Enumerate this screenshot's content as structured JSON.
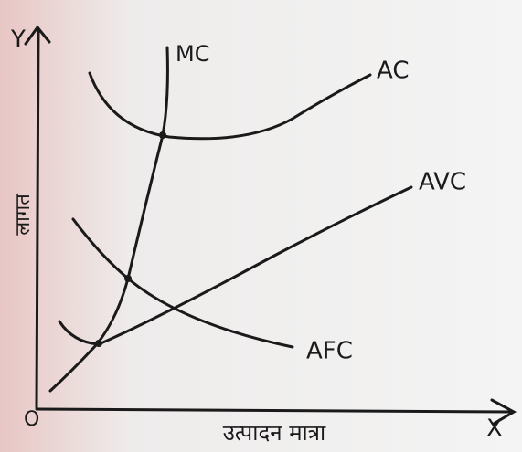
{
  "axes": {
    "y_label": "Y",
    "x_label": "X",
    "origin": "O",
    "y_title": "लागत",
    "x_title": "उत्पादन मात्रा"
  },
  "curves": [
    {
      "label": "MC"
    },
    {
      "label": "AC"
    },
    {
      "label": "AVC"
    },
    {
      "label": "AFC"
    }
  ]
}
